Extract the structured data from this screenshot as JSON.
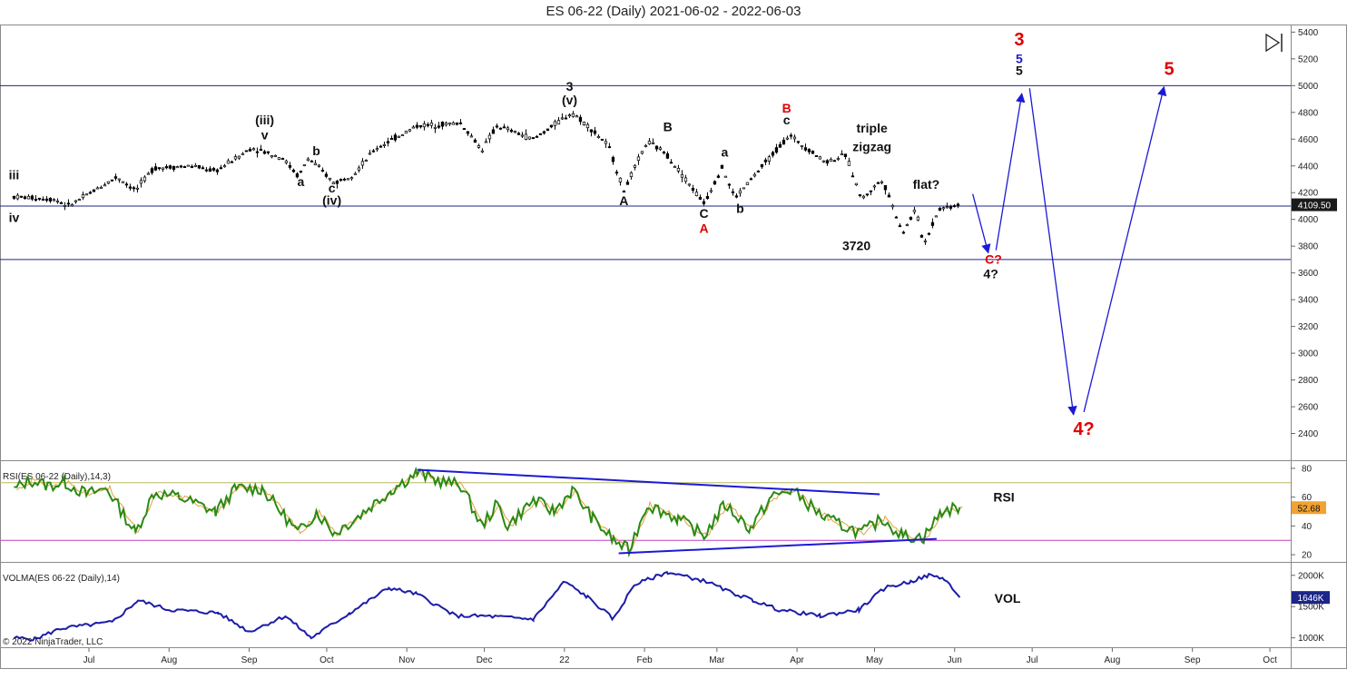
{
  "title": "ES 06-22 (Daily)  2021-06-02 - 2022-06-03",
  "colors": {
    "wave_blue": "#1a1ad6",
    "line_navy": "#1c2588",
    "red": "#e00000",
    "rsi_green": "#2a8a12",
    "rsi_signal": "#e0a040",
    "vol_line": "#1c1ca8",
    "rsi_badge": "#f2a232"
  },
  "chart_data": [
    {
      "type": "candlestick",
      "title": "ES 06-22 (Daily)  2021-06-02 - 2022-06-03",
      "x_ticks": [
        "Jul",
        "Aug",
        "Sep",
        "Oct",
        "Nov",
        "Dec",
        "22",
        "Feb",
        "Mar",
        "Apr",
        "May",
        "Jun",
        "Jul",
        "Aug",
        "Sep",
        "Oct"
      ],
      "ylim": [
        2200,
        5450
      ],
      "y_ticks": [
        2400,
        2600,
        2800,
        3000,
        3200,
        3400,
        3600,
        3800,
        4000,
        4200,
        4400,
        4600,
        4800,
        5000,
        5200,
        5400
      ],
      "last_price_label": "4109.50",
      "last_price": 4109.5,
      "horizontal_lines": [
        5000,
        4100,
        3700
      ],
      "price_path": [
        {
          "d": "2021-06-02",
          "y": 4170
        },
        {
          "d": "2021-06-18",
          "y": 4150
        },
        {
          "d": "2021-06-23",
          "y": 4100
        },
        {
          "d": "2021-07-12",
          "y": 4320
        },
        {
          "d": "2021-07-19",
          "y": 4215
        },
        {
          "d": "2021-07-26",
          "y": 4385
        },
        {
          "d": "2021-08-10",
          "y": 4400
        },
        {
          "d": "2021-08-19",
          "y": 4360
        },
        {
          "d": "2021-09-02",
          "y": 4535
        },
        {
          "d": "2021-09-14",
          "y": 4460
        },
        {
          "d": "2021-09-20",
          "y": 4320
        },
        {
          "d": "2021-09-24",
          "y": 4460
        },
        {
          "d": "2021-10-04",
          "y": 4270
        },
        {
          "d": "2021-10-12",
          "y": 4350
        },
        {
          "d": "2021-10-20",
          "y": 4530
        },
        {
          "d": "2021-11-05",
          "y": 4700
        },
        {
          "d": "2021-11-22",
          "y": 4720
        },
        {
          "d": "2021-11-30",
          "y": 4520
        },
        {
          "d": "2021-12-06",
          "y": 4700
        },
        {
          "d": "2021-12-20",
          "y": 4600
        },
        {
          "d": "2022-01-04",
          "y": 4800
        },
        {
          "d": "2022-01-10",
          "y": 4700
        },
        {
          "d": "2022-01-18",
          "y": 4550
        },
        {
          "d": "2022-01-24",
          "y": 4215
        },
        {
          "d": "2022-02-02",
          "y": 4580
        },
        {
          "d": "2022-02-09",
          "y": 4500
        },
        {
          "d": "2022-02-24",
          "y": 4120
        },
        {
          "d": "2022-03-03",
          "y": 4390
        },
        {
          "d": "2022-03-08",
          "y": 4160
        },
        {
          "d": "2022-03-29",
          "y": 4630
        },
        {
          "d": "2022-04-12",
          "y": 4430
        },
        {
          "d": "2022-04-20",
          "y": 4480
        },
        {
          "d": "2022-04-26",
          "y": 4150
        },
        {
          "d": "2022-05-04",
          "y": 4300
        },
        {
          "d": "2022-05-12",
          "y": 3900
        },
        {
          "d": "2022-05-17",
          "y": 4080
        },
        {
          "d": "2022-05-20",
          "y": 3810
        },
        {
          "d": "2022-05-26",
          "y": 4080
        },
        {
          "d": "2022-06-03",
          "y": 4110
        }
      ],
      "projection_arrows": [
        {
          "from": {
            "d": "2022-06-08",
            "y": 4190
          },
          "to": {
            "d": "2022-06-14",
            "y": 3750
          }
        },
        {
          "from": {
            "d": "2022-06-17",
            "y": 3770
          },
          "to": {
            "d": "2022-06-27",
            "y": 4940
          }
        },
        {
          "from": {
            "d": "2022-06-30",
            "y": 4980
          },
          "to": {
            "d": "2022-07-17",
            "y": 2540
          }
        },
        {
          "from": {
            "d": "2022-07-21",
            "y": 2560
          },
          "to": {
            "d": "2022-08-21",
            "y": 4990
          }
        }
      ],
      "wave_labels": [
        {
          "text": "iii",
          "d": "2021-06-02",
          "y": 4300,
          "color": "#111111"
        },
        {
          "text": "iv",
          "d": "2021-06-02",
          "y": 3980,
          "color": "#111111"
        },
        {
          "text": "(iii)",
          "d": "2021-09-07",
          "y": 4710,
          "color": "#111111"
        },
        {
          "text": "v",
          "d": "2021-09-07",
          "y": 4600,
          "color": "#111111"
        },
        {
          "text": "b",
          "d": "2021-09-27",
          "y": 4480,
          "color": "#111111"
        },
        {
          "text": "a",
          "d": "2021-09-21",
          "y": 4250,
          "color": "#111111"
        },
        {
          "text": "c",
          "d": "2021-10-03",
          "y": 4200,
          "color": "#111111"
        },
        {
          "text": "(iv)",
          "d": "2021-10-03",
          "y": 4110,
          "color": "#111111"
        },
        {
          "text": "3",
          "d": "2022-01-03",
          "y": 4960,
          "color": "#111111"
        },
        {
          "text": "(v)",
          "d": "2022-01-03",
          "y": 4860,
          "color": "#111111"
        },
        {
          "text": "A",
          "d": "2022-01-24",
          "y": 4105,
          "color": "#111111"
        },
        {
          "text": "B",
          "d": "2022-02-10",
          "y": 4660,
          "color": "#111111"
        },
        {
          "text": "C",
          "d": "2022-02-24",
          "y": 4010,
          "color": "#111111"
        },
        {
          "text": "A",
          "d": "2022-02-24",
          "y": 3900,
          "color": "#e00000"
        },
        {
          "text": "a",
          "d": "2022-03-04",
          "y": 4470,
          "color": "#111111"
        },
        {
          "text": "b",
          "d": "2022-03-10",
          "y": 4050,
          "color": "#111111"
        },
        {
          "text": "B",
          "d": "2022-03-28",
          "y": 4800,
          "color": "#e00000"
        },
        {
          "text": "c",
          "d": "2022-03-28",
          "y": 4710,
          "color": "#111111"
        },
        {
          "text": "triple",
          "d": "2022-04-30",
          "y": 4650,
          "color": "#111111"
        },
        {
          "text": "zigzag",
          "d": "2022-04-30",
          "y": 4510,
          "color": "#111111"
        },
        {
          "text": "flat?",
          "d": "2022-05-21",
          "y": 4230,
          "color": "#111111"
        },
        {
          "text": "3720",
          "d": "2022-04-24",
          "y": 3770,
          "color": "#111111"
        },
        {
          "text": "C?",
          "d": "2022-06-16",
          "y": 3670,
          "color": "#e00000"
        },
        {
          "text": "4?",
          "d": "2022-06-15",
          "y": 3560,
          "color": "#111111"
        },
        {
          "text": "3",
          "d": "2022-06-26",
          "y": 5300,
          "color": "#e00000"
        },
        {
          "text": "5",
          "d": "2022-06-26",
          "y": 5170,
          "color": "#1a1ad6"
        },
        {
          "text": "5",
          "d": "2022-06-26",
          "y": 5080,
          "color": "#111111"
        },
        {
          "text": "5",
          "d": "2022-08-23",
          "y": 5080,
          "color": "#e00000"
        },
        {
          "text": "4?",
          "d": "2022-07-21",
          "y": 2390,
          "color": "#e00000"
        }
      ]
    },
    {
      "type": "line",
      "title": "RSI(ES 06-22 (Daily),14,3)",
      "label": "RSI",
      "ylim": [
        15,
        85
      ],
      "y_ticks": [
        20,
        40,
        60,
        80
      ],
      "reference_lines": [
        70,
        30
      ],
      "last_value_label": "52.68",
      "last_value": 52.68,
      "series": [
        {
          "points": [
            {
              "d": "2021-06-02",
              "y": 65
            },
            {
              "d": "2021-06-08",
              "y": 72
            },
            {
              "d": "2021-06-15",
              "y": 68
            },
            {
              "d": "2021-06-22",
              "y": 70
            },
            {
              "d": "2021-06-30",
              "y": 62
            },
            {
              "d": "2021-07-08",
              "y": 66
            },
            {
              "d": "2021-07-19",
              "y": 35
            },
            {
              "d": "2021-07-26",
              "y": 63
            },
            {
              "d": "2021-08-05",
              "y": 60
            },
            {
              "d": "2021-08-19",
              "y": 50
            },
            {
              "d": "2021-08-27",
              "y": 66
            },
            {
              "d": "2021-09-06",
              "y": 66
            },
            {
              "d": "2021-09-20",
              "y": 35
            },
            {
              "d": "2021-09-27",
              "y": 50
            },
            {
              "d": "2021-10-04",
              "y": 35
            },
            {
              "d": "2021-10-12",
              "y": 45
            },
            {
              "d": "2021-10-26",
              "y": 65
            },
            {
              "d": "2021-11-05",
              "y": 77
            },
            {
              "d": "2021-11-12",
              "y": 72
            },
            {
              "d": "2021-11-22",
              "y": 68
            },
            {
              "d": "2021-11-30",
              "y": 40
            },
            {
              "d": "2021-12-06",
              "y": 55
            },
            {
              "d": "2021-12-10",
              "y": 40
            },
            {
              "d": "2021-12-20",
              "y": 58
            },
            {
              "d": "2021-12-28",
              "y": 50
            },
            {
              "d": "2022-01-04",
              "y": 65
            },
            {
              "d": "2022-01-12",
              "y": 45
            },
            {
              "d": "2022-01-20",
              "y": 30
            },
            {
              "d": "2022-01-26",
              "y": 23
            },
            {
              "d": "2022-02-02",
              "y": 55
            },
            {
              "d": "2022-02-14",
              "y": 45
            },
            {
              "d": "2022-02-24",
              "y": 33
            },
            {
              "d": "2022-03-04",
              "y": 55
            },
            {
              "d": "2022-03-14",
              "y": 38
            },
            {
              "d": "2022-03-22",
              "y": 60
            },
            {
              "d": "2022-03-30",
              "y": 65
            },
            {
              "d": "2022-04-12",
              "y": 45
            },
            {
              "d": "2022-04-26",
              "y": 35
            },
            {
              "d": "2022-05-04",
              "y": 45
            },
            {
              "d": "2022-05-12",
              "y": 33
            },
            {
              "d": "2022-05-20",
              "y": 32
            },
            {
              "d": "2022-05-27",
              "y": 50
            },
            {
              "d": "2022-06-03",
              "y": 53
            }
          ]
        }
      ],
      "trendlines": [
        {
          "from": {
            "d": "2021-11-05",
            "y": 79
          },
          "to": {
            "d": "2022-05-03",
            "y": 62
          }
        },
        {
          "from": {
            "d": "2022-01-22",
            "y": 21
          },
          "to": {
            "d": "2022-05-25",
            "y": 31
          }
        }
      ]
    },
    {
      "type": "line",
      "title": "VOLMA(ES 06-22 (Daily),14)",
      "label": "VOL",
      "ylim": [
        850,
        2200
      ],
      "y_ticks": [
        "1000K",
        "1500K",
        "2000K"
      ],
      "y_tick_values": [
        1000,
        1500,
        2000
      ],
      "last_value_label": "1646K",
      "last_value": 1646,
      "series": [
        {
          "points": [
            {
              "d": "2021-06-02",
              "y": 1000
            },
            {
              "d": "2021-06-10",
              "y": 980
            },
            {
              "d": "2021-06-20",
              "y": 1150
            },
            {
              "d": "2021-07-10",
              "y": 1250
            },
            {
              "d": "2021-07-20",
              "y": 1600
            },
            {
              "d": "2021-08-01",
              "y": 1450
            },
            {
              "d": "2021-08-20",
              "y": 1400
            },
            {
              "d": "2021-09-01",
              "y": 1100
            },
            {
              "d": "2021-09-15",
              "y": 1350
            },
            {
              "d": "2021-09-25",
              "y": 1000
            },
            {
              "d": "2021-10-10",
              "y": 1400
            },
            {
              "d": "2021-10-25",
              "y": 1800
            },
            {
              "d": "2021-11-05",
              "y": 1700
            },
            {
              "d": "2021-11-20",
              "y": 1350
            },
            {
              "d": "2021-12-01",
              "y": 1350
            },
            {
              "d": "2021-12-20",
              "y": 1300
            },
            {
              "d": "2022-01-01",
              "y": 1900
            },
            {
              "d": "2022-01-10",
              "y": 1650
            },
            {
              "d": "2022-01-20",
              "y": 1300
            },
            {
              "d": "2022-01-28",
              "y": 1850
            },
            {
              "d": "2022-02-10",
              "y": 2050
            },
            {
              "d": "2022-02-25",
              "y": 1900
            },
            {
              "d": "2022-03-05",
              "y": 1750
            },
            {
              "d": "2022-03-15",
              "y": 1600
            },
            {
              "d": "2022-03-25",
              "y": 1450
            },
            {
              "d": "2022-04-10",
              "y": 1350
            },
            {
              "d": "2022-04-25",
              "y": 1450
            },
            {
              "d": "2022-05-05",
              "y": 1800
            },
            {
              "d": "2022-05-15",
              "y": 1900
            },
            {
              "d": "2022-05-22",
              "y": 2000
            },
            {
              "d": "2022-05-28",
              "y": 1950
            },
            {
              "d": "2022-06-03",
              "y": 1646
            }
          ]
        }
      ]
    }
  ],
  "x_axis_tick_dates": [
    "2021-07-01",
    "2021-08-01",
    "2021-09-01",
    "2021-10-01",
    "2021-11-01",
    "2021-12-01",
    "2022-01-01",
    "2022-02-01",
    "2022-03-01",
    "2022-04-01",
    "2022-05-01",
    "2022-06-01",
    "2022-07-01",
    "2022-08-01",
    "2022-09-01",
    "2022-10-01"
  ],
  "copyright": "© 2022 NinjaTrader, LLC",
  "icons": {
    "collapse": "skip-to-end-icon"
  }
}
